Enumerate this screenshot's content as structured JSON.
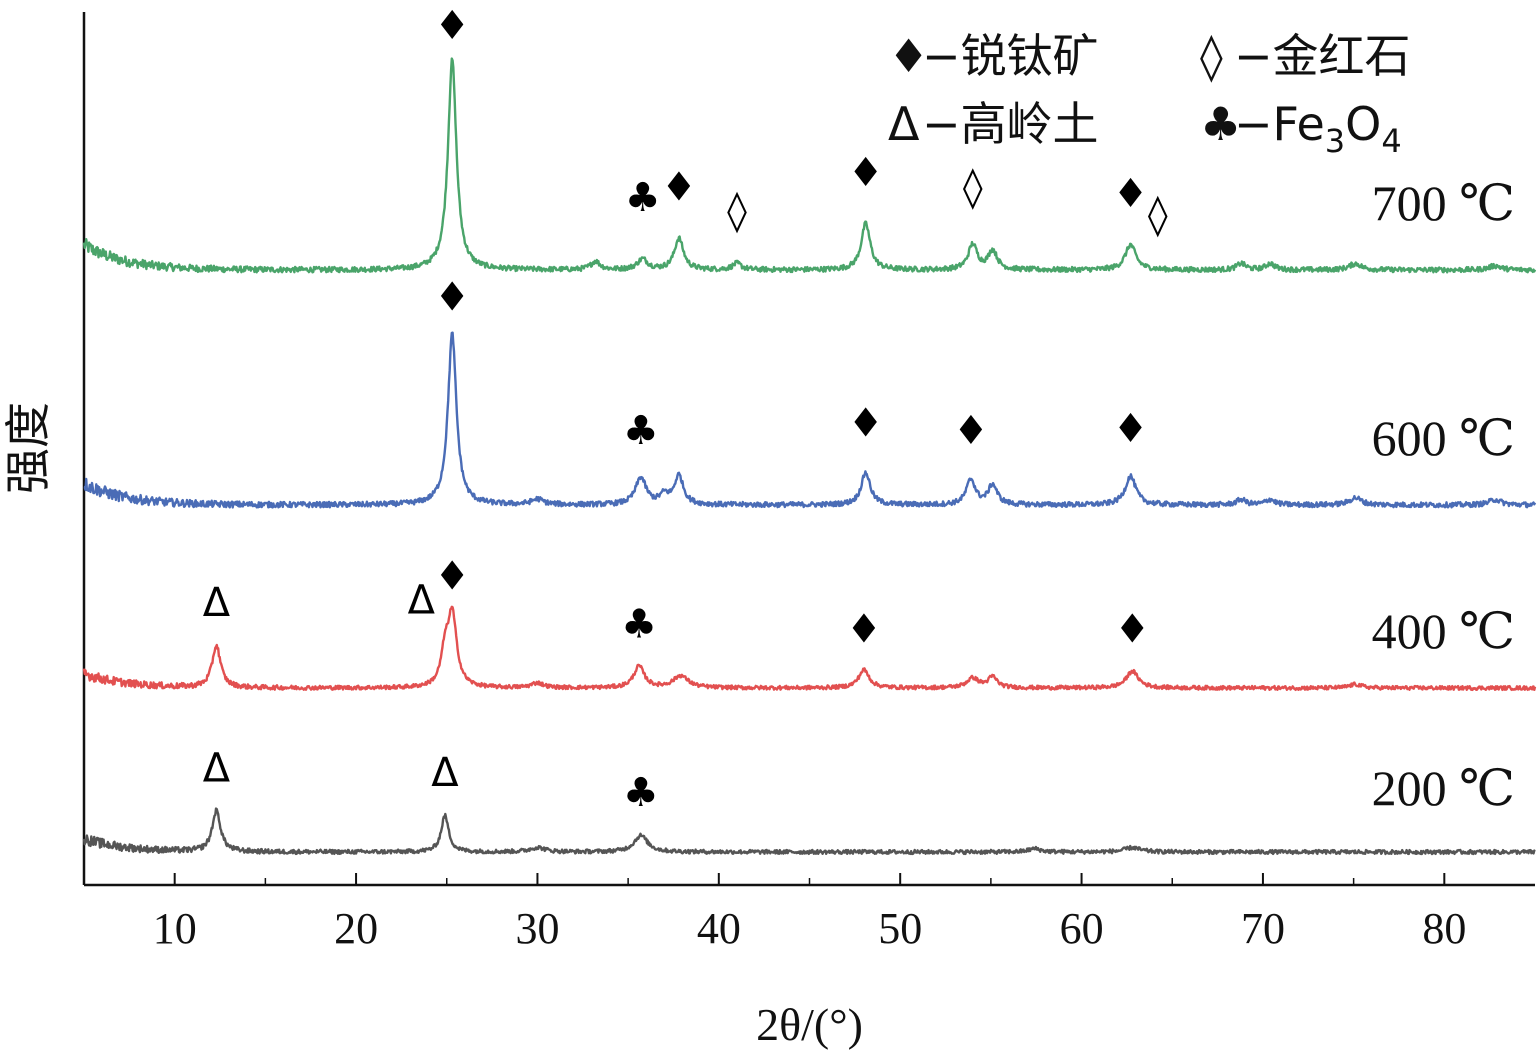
{
  "chart_data": {
    "type": "line",
    "xlabel": "2θ/(°)",
    "ylabel": "强度",
    "xlim": [
      5,
      85
    ],
    "x_ticks": [
      10,
      20,
      30,
      40,
      50,
      60,
      70,
      80
    ],
    "x_tick_labels": [
      "10",
      "20",
      "30",
      "40",
      "50",
      "60",
      "70",
      "80"
    ],
    "legend": {
      "placement": "top-right",
      "entries": [
        {
          "symbol": "♦",
          "filled": true,
          "text": "−锐钛矿"
        },
        {
          "symbol": "◊",
          "filled": false,
          "text": "−金红石"
        },
        {
          "symbol": "Δ",
          "filled": false,
          "text": "−高岭土"
        },
        {
          "symbol": "♣",
          "filled": true,
          "text": "−Fe",
          "sub1": "3",
          "mid": "O",
          "sub2": "4"
        }
      ]
    },
    "series": [
      {
        "name": "700 ℃",
        "color": "#4aa46a",
        "baseline": 0.12,
        "noise": 0.012,
        "peaks": [
          [
            25.3,
            1.0,
            0.28
          ],
          [
            33.2,
            0.04,
            0.3
          ],
          [
            35.8,
            0.05,
            0.35
          ],
          [
            37.8,
            0.15,
            0.3
          ],
          [
            41.0,
            0.03,
            0.3
          ],
          [
            48.1,
            0.22,
            0.3
          ],
          [
            54.0,
            0.12,
            0.3
          ],
          [
            55.1,
            0.09,
            0.3
          ],
          [
            62.7,
            0.12,
            0.35
          ],
          [
            68.8,
            0.03,
            0.3
          ],
          [
            70.4,
            0.03,
            0.3
          ],
          [
            75.1,
            0.03,
            0.4
          ],
          [
            82.8,
            0.02,
            0.4
          ]
        ],
        "markers": [
          {
            "symbol": "♦",
            "x": 25.3,
            "y": 1.1,
            "filled": true
          },
          {
            "symbol": "♣",
            "x": 35.8,
            "y": 0.28,
            "filled": true
          },
          {
            "symbol": "♦",
            "x": 37.8,
            "y": 0.33,
            "filled": true
          },
          {
            "symbol": "◊",
            "x": 41.0,
            "y": 0.22,
            "filled": false
          },
          {
            "symbol": "♦",
            "x": 48.1,
            "y": 0.4,
            "filled": true
          },
          {
            "symbol": "◊",
            "x": 54.0,
            "y": 0.33,
            "filled": false
          },
          {
            "symbol": "♦",
            "x": 62.7,
            "y": 0.3,
            "filled": true
          },
          {
            "symbol": "◊",
            "x": 64.2,
            "y": 0.2,
            "filled": false
          }
        ]
      },
      {
        "name": "600 ℃",
        "color": "#4a6cb6",
        "baseline": 0.12,
        "noise": 0.014,
        "peaks": [
          [
            25.3,
            0.95,
            0.28
          ],
          [
            30.0,
            0.03,
            0.4
          ],
          [
            35.7,
            0.15,
            0.35
          ],
          [
            37.0,
            0.05,
            0.3
          ],
          [
            37.8,
            0.16,
            0.3
          ],
          [
            48.1,
            0.18,
            0.3
          ],
          [
            53.9,
            0.14,
            0.3
          ],
          [
            55.1,
            0.11,
            0.3
          ],
          [
            62.7,
            0.16,
            0.35
          ],
          [
            68.8,
            0.03,
            0.3
          ],
          [
            70.4,
            0.03,
            0.3
          ],
          [
            75.1,
            0.04,
            0.4
          ],
          [
            82.8,
            0.03,
            0.4
          ]
        ],
        "markers": [
          {
            "symbol": "♦",
            "x": 25.3,
            "y": 1.08,
            "filled": true
          },
          {
            "symbol": "♣",
            "x": 35.7,
            "y": 0.34,
            "filled": true
          },
          {
            "symbol": "♦",
            "x": 48.1,
            "y": 0.38,
            "filled": true
          },
          {
            "symbol": "♦",
            "x": 53.9,
            "y": 0.34,
            "filled": true
          },
          {
            "symbol": "♦",
            "x": 62.7,
            "y": 0.35,
            "filled": true
          }
        ]
      },
      {
        "name": "400 ℃",
        "color": "#e25050",
        "baseline": 0.12,
        "noise": 0.016,
        "peaks": [
          [
            12.3,
            0.35,
            0.28
          ],
          [
            24.9,
            0.25,
            0.25
          ],
          [
            25.3,
            0.6,
            0.3
          ],
          [
            30.0,
            0.04,
            0.4
          ],
          [
            35.6,
            0.18,
            0.35
          ],
          [
            37.9,
            0.1,
            0.5
          ],
          [
            48.0,
            0.15,
            0.35
          ],
          [
            54.0,
            0.08,
            0.4
          ],
          [
            55.1,
            0.09,
            0.3
          ],
          [
            62.8,
            0.14,
            0.4
          ],
          [
            75.1,
            0.03,
            0.4
          ]
        ],
        "markers": [
          {
            "symbol": "Δ",
            "x": 12.3,
            "y": 0.6,
            "filled": false
          },
          {
            "symbol": "Δ",
            "x": 23.6,
            "y": 0.62,
            "filled": false
          },
          {
            "symbol": "♦",
            "x": 25.3,
            "y": 0.82,
            "filled": true
          },
          {
            "symbol": "♣",
            "x": 35.6,
            "y": 0.42,
            "filled": true
          },
          {
            "symbol": "♦",
            "x": 48.0,
            "y": 0.38,
            "filled": true
          },
          {
            "symbol": "♦",
            "x": 62.8,
            "y": 0.38,
            "filled": true
          }
        ]
      },
      {
        "name": "200 ℃",
        "color": "#555555",
        "baseline": 0.12,
        "noise": 0.018,
        "peaks": [
          [
            12.3,
            0.37,
            0.28
          ],
          [
            24.9,
            0.33,
            0.25
          ],
          [
            30.0,
            0.04,
            0.5
          ],
          [
            35.7,
            0.15,
            0.45
          ],
          [
            57.4,
            0.03,
            0.4
          ],
          [
            62.8,
            0.04,
            0.5
          ]
        ],
        "markers": [
          {
            "symbol": "Δ",
            "x": 12.3,
            "y": 0.64,
            "filled": false
          },
          {
            "symbol": "Δ",
            "x": 24.9,
            "y": 0.6,
            "filled": false
          },
          {
            "symbol": "♣",
            "x": 35.7,
            "y": 0.42,
            "filled": true
          }
        ]
      }
    ]
  }
}
